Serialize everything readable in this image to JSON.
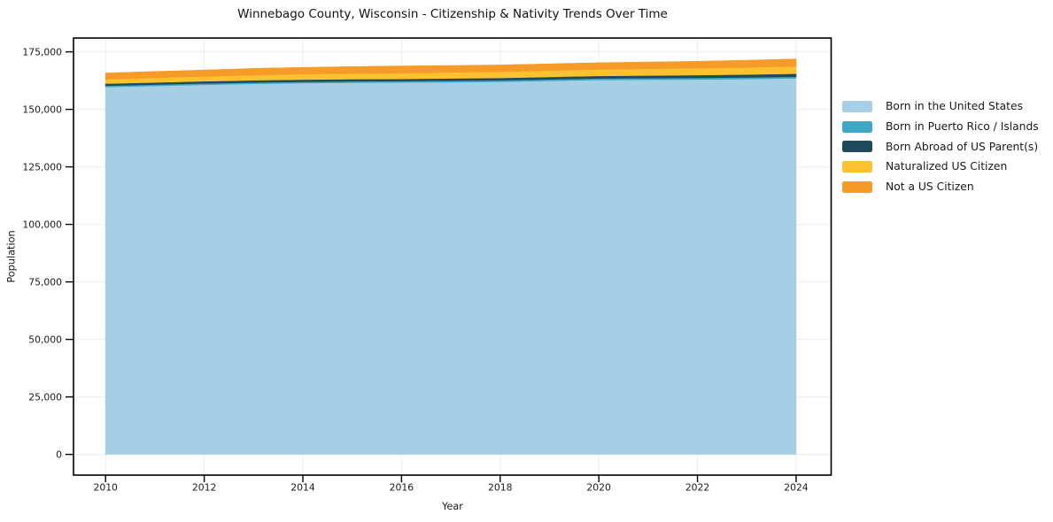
{
  "title": "Winnebago County, Wisconsin - Citizenship & Nativity Trends Over Time",
  "chart_data": {
    "type": "area",
    "stacked": true,
    "title": "Winnebago County, Wisconsin - Citizenship & Nativity Trends Over Time",
    "xlabel": "Year",
    "ylabel": "Population",
    "x": [
      2010,
      2011,
      2012,
      2013,
      2014,
      2015,
      2016,
      2017,
      2018,
      2019,
      2020,
      2021,
      2022,
      2023,
      2024
    ],
    "series": [
      {
        "name": "Born in the United States",
        "color": "#a6cfe5",
        "values": [
          159700,
          160200,
          160700,
          161100,
          161400,
          161600,
          161700,
          161800,
          162000,
          162400,
          162800,
          162900,
          163000,
          163200,
          163500
        ]
      },
      {
        "name": "Born in Puerto Rico / Islands",
        "color": "#3fa6c3",
        "values": [
          600,
          600,
          600,
          600,
          600,
          600,
          600,
          650,
          650,
          650,
          650,
          680,
          700,
          700,
          700
        ]
      },
      {
        "name": "Born Abroad of US Parent(s)",
        "color": "#1d4a5d",
        "values": [
          900,
          900,
          900,
          950,
          950,
          950,
          950,
          1000,
          1000,
          1050,
          1100,
          1150,
          1200,
          1250,
          1300
        ]
      },
      {
        "name": "Naturalized US Citizen",
        "color": "#fcc12f",
        "values": [
          1900,
          2000,
          2100,
          2250,
          2350,
          2450,
          2550,
          2600,
          2700,
          2750,
          2800,
          2900,
          3000,
          3100,
          3200
        ]
      },
      {
        "name": "Not a US Citizen",
        "color": "#f79b28",
        "values": [
          2700,
          2750,
          2800,
          2900,
          2950,
          3000,
          3050,
          3000,
          2950,
          2950,
          2900,
          2950,
          3000,
          3100,
          3200
        ]
      }
    ],
    "x_ticks": [
      2010,
      2012,
      2014,
      2016,
      2018,
      2020,
      2022,
      2024
    ],
    "x_tick_labels": [
      "2010",
      "2012",
      "2014",
      "2016",
      "2018",
      "2020",
      "2022",
      "2024"
    ],
    "y_ticks": [
      0,
      25000,
      50000,
      75000,
      100000,
      125000,
      150000,
      175000
    ],
    "y_tick_labels": [
      "0",
      "25,000",
      "50,000",
      "75,000",
      "100,000",
      "125,000",
      "150,000",
      "175,000"
    ],
    "xlim": [
      2009.35,
      2024.71
    ],
    "ylim": [
      -9000,
      181000
    ],
    "grid": true,
    "legend_position": "right"
  }
}
